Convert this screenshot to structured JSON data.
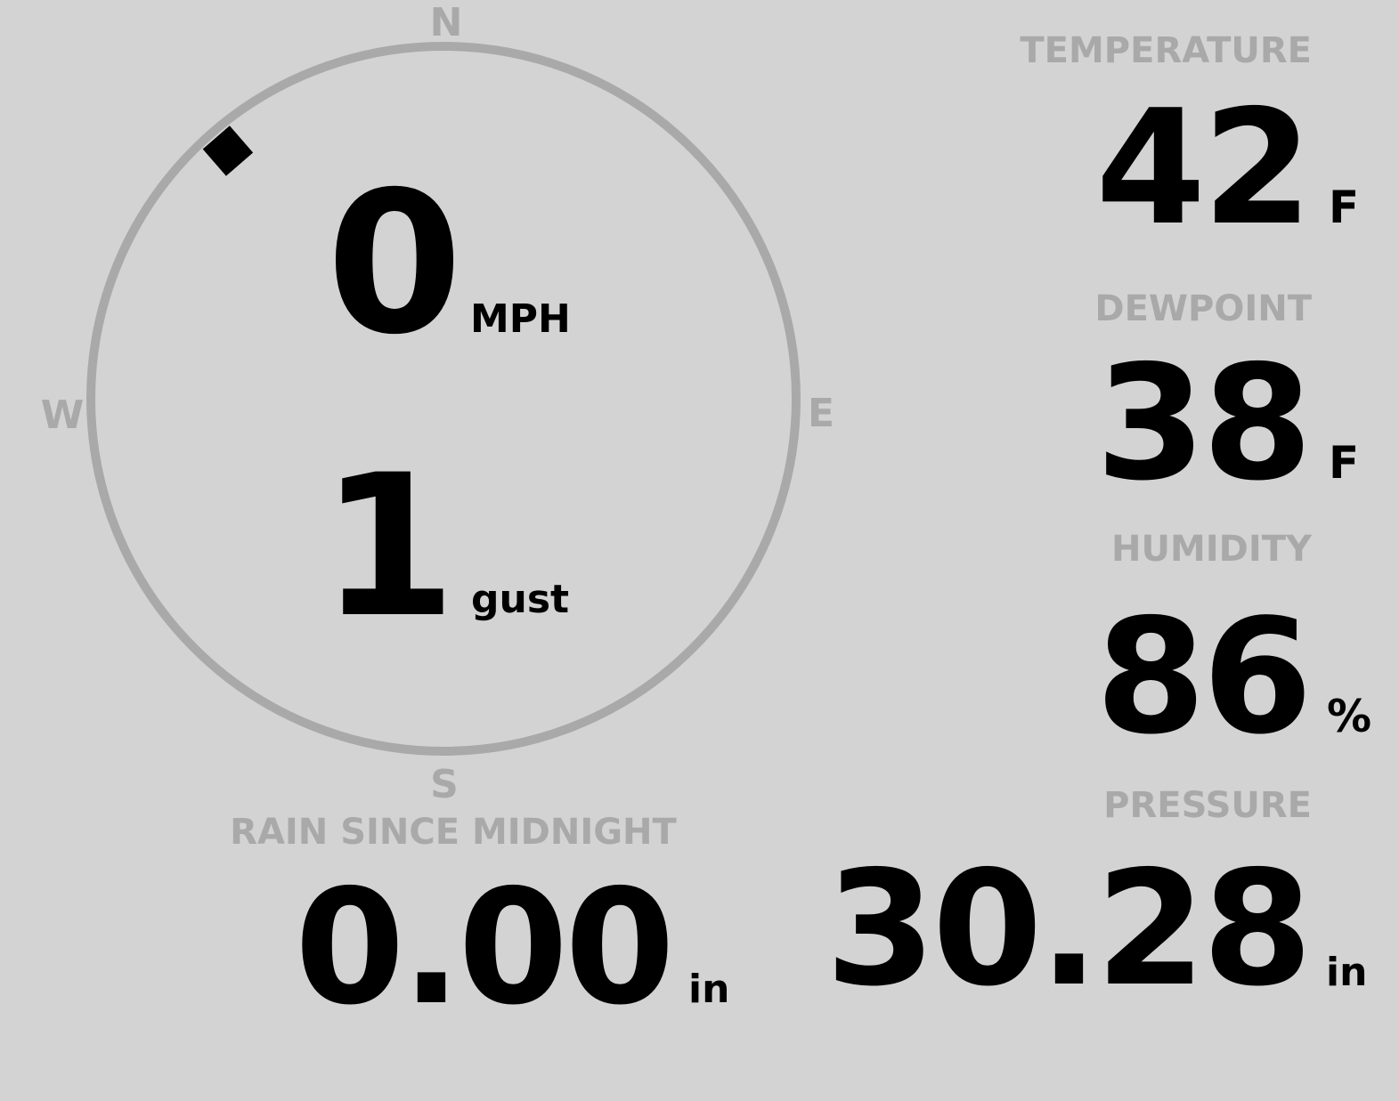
{
  "colors": {
    "background": "#d3d3d3",
    "label": "#a9a9a9",
    "value": "#000000"
  },
  "wind": {
    "cardinals": {
      "n": "N",
      "e": "E",
      "s": "S",
      "w": "W"
    },
    "speed": "0",
    "speed_unit": "MPH",
    "gust": "1",
    "gust_unit": "gust",
    "direction_deg": 319
  },
  "temperature": {
    "label": "TEMPERATURE",
    "value": "42",
    "unit": "F"
  },
  "dewpoint": {
    "label": "DEWPOINT",
    "value": "38",
    "unit": "F"
  },
  "humidity": {
    "label": "HUMIDITY",
    "value": "86",
    "unit": "%"
  },
  "rain": {
    "label": "RAIN SINCE MIDNIGHT",
    "value": "0.00",
    "unit": "in"
  },
  "pressure": {
    "label": "PRESSURE",
    "value": "30.28",
    "unit": "in"
  }
}
